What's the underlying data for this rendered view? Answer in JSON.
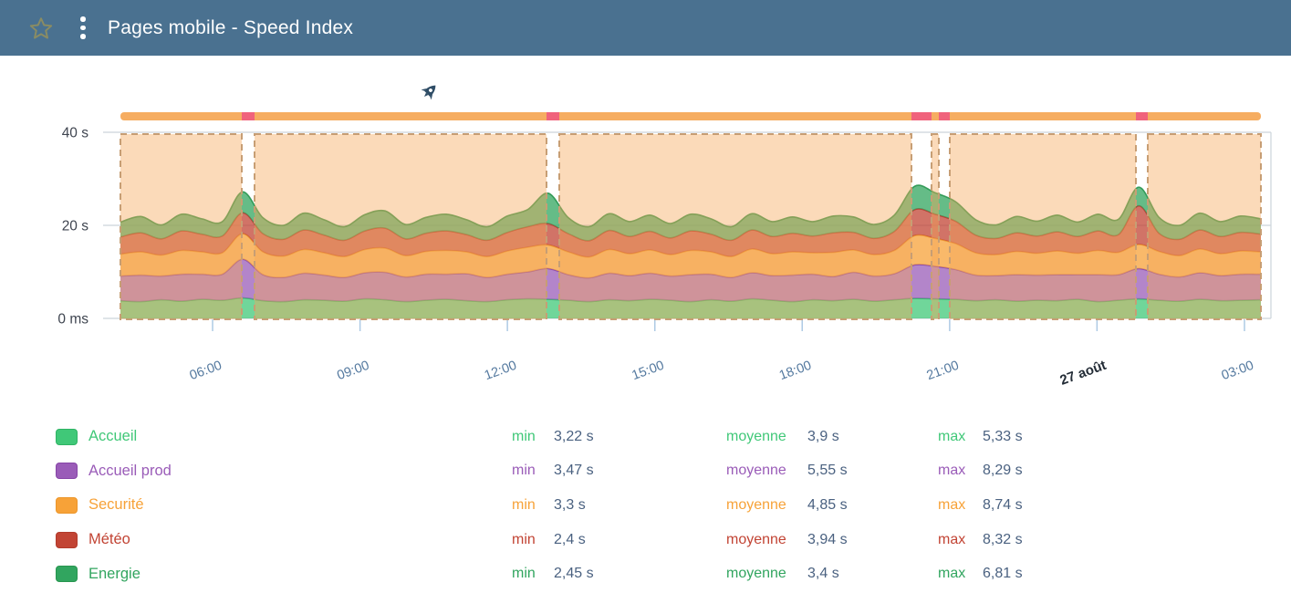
{
  "header": {
    "title": "Pages mobile - Speed Index",
    "favorite_icon": "star-outline",
    "menu_icon": "kebab-vertical"
  },
  "chart_data": {
    "type": "area",
    "stacked": true,
    "unit": "s",
    "title": "Pages mobile - Speed Index",
    "y_axis": {
      "max": 40,
      "ticks": [
        {
          "label": "40 s",
          "value": 40
        },
        {
          "label": "20 s",
          "value": 20
        },
        {
          "label": "0 ms",
          "value": 0
        }
      ]
    },
    "x_ticks": [
      {
        "label": "06:00",
        "pos": 0.0808,
        "emphasis": false
      },
      {
        "label": "09:00",
        "pos": 0.2101,
        "emphasis": false
      },
      {
        "label": "12:00",
        "pos": 0.3393,
        "emphasis": false
      },
      {
        "label": "15:00",
        "pos": 0.4686,
        "emphasis": false
      },
      {
        "label": "18:00",
        "pos": 0.5978,
        "emphasis": false
      },
      {
        "label": "21:00",
        "pos": 0.7271,
        "emphasis": false
      },
      {
        "label": "27 août",
        "pos": 0.8563,
        "emphasis": true
      },
      {
        "label": "03:00",
        "pos": 0.9856,
        "emphasis": false
      }
    ],
    "events_bar": {
      "base_color": "#f6ad61",
      "incident_color": "#f0637c"
    },
    "incidents": [
      {
        "start": 0.1064,
        "end": 0.1176
      },
      {
        "start": 0.3736,
        "end": 0.3848
      },
      {
        "start": 0.6936,
        "end": 0.7112
      },
      {
        "start": 0.7176,
        "end": 0.7272
      },
      {
        "start": 0.8904,
        "end": 0.9008
      }
    ],
    "marker": {
      "icon": "rocket-icon",
      "pos": 0.271
    },
    "overlay": {
      "fill": "rgba(246,167,88,0.42)",
      "dash_color": "#c79e74"
    },
    "grid_color": "#ccd4da",
    "tick_color": "#aecae4",
    "axis_label_color": "#3f4550",
    "x_label_color": "#54799f",
    "x_label_emphasis_color": "#232c36",
    "series": [
      {
        "name": "Accueil",
        "color": "#40c878",
        "dark": "#2fb364",
        "min": 3.22,
        "avg": 3.9,
        "max": 5.33,
        "values": [
          3.8,
          3.6,
          4.0,
          3.7,
          4.1,
          3.9,
          4.4,
          3.8,
          3.6,
          4.0,
          3.9,
          3.7,
          4.2,
          4.0,
          3.6,
          3.9,
          4.1,
          3.8,
          3.6,
          4.0,
          4.2,
          4.1,
          3.9,
          3.6,
          4.0,
          3.8,
          4.1,
          3.9,
          3.6,
          4.0,
          3.7,
          4.2,
          3.9,
          3.6,
          4.0,
          3.8,
          4.1,
          3.7,
          4.0,
          4.3,
          4.2,
          4.1,
          3.8,
          4.0,
          3.7,
          3.9,
          3.8,
          4.1,
          3.6,
          3.9,
          4.2,
          3.9,
          3.7,
          4.1,
          3.8,
          3.9,
          4.0
        ]
      },
      {
        "name": "Accueil prod",
        "color": "#9a5cb8",
        "dark": "#8745a7",
        "min": 3.47,
        "avg": 5.55,
        "max": 8.29,
        "values": [
          5.3,
          5.7,
          5.1,
          5.8,
          5.4,
          5.6,
          8.3,
          5.6,
          5.2,
          5.7,
          5.4,
          5.1,
          5.6,
          5.9,
          5.3,
          5.6,
          5.4,
          5.8,
          5.2,
          5.5,
          5.8,
          6.6,
          5.5,
          5.1,
          5.7,
          5.4,
          5.6,
          5.2,
          5.8,
          5.5,
          5.1,
          5.6,
          5.3,
          5.7,
          5.5,
          5.2,
          5.8,
          5.4,
          5.6,
          7.2,
          7.0,
          6.4,
          5.5,
          5.2,
          5.7,
          5.4,
          5.6,
          5.3,
          5.8,
          5.5,
          6.5,
          5.6,
          5.2,
          5.7,
          5.4,
          5.6,
          5.5
        ]
      },
      {
        "name": "Securité",
        "color": "#f7a238",
        "dark": "#ec962b",
        "min": 3.3,
        "avg": 4.85,
        "max": 8.74,
        "values": [
          4.7,
          5.0,
          4.5,
          5.1,
          4.8,
          4.6,
          5.5,
          4.9,
          4.6,
          5.1,
          4.8,
          4.5,
          5.0,
          5.2,
          4.6,
          4.9,
          5.1,
          4.7,
          4.5,
          5.0,
          5.3,
          5.1,
          4.9,
          4.5,
          5.1,
          4.7,
          5.0,
          4.6,
          5.2,
          4.8,
          4.5,
          5.1,
          4.7,
          5.0,
          4.6,
          5.2,
          4.8,
          4.6,
          5.0,
          6.3,
          6.0,
          5.6,
          4.8,
          4.5,
          5.0,
          4.7,
          5.1,
          4.6,
          5.2,
          4.8,
          5.2,
          4.9,
          4.6,
          5.1,
          4.7,
          5.0,
          4.8
        ]
      },
      {
        "name": "Météo",
        "color": "#c24434",
        "dark": "#b23a2b",
        "min": 2.4,
        "avg": 3.94,
        "max": 8.32,
        "values": [
          3.7,
          4.1,
          3.5,
          4.2,
          3.8,
          3.6,
          4.5,
          3.9,
          3.6,
          4.2,
          3.8,
          3.5,
          4.0,
          4.3,
          3.6,
          3.9,
          4.2,
          3.7,
          3.5,
          4.0,
          4.4,
          4.6,
          3.9,
          3.5,
          4.1,
          3.7,
          4.0,
          3.6,
          4.2,
          3.8,
          3.5,
          4.1,
          3.7,
          4.0,
          3.6,
          4.2,
          3.8,
          3.5,
          4.1,
          5.6,
          5.2,
          4.8,
          3.8,
          3.5,
          4.0,
          3.7,
          4.1,
          3.6,
          4.2,
          3.8,
          8.3,
          3.9,
          3.5,
          4.1,
          3.7,
          4.0,
          3.8
        ]
      },
      {
        "name": "Energie",
        "color": "#31a55f",
        "dark": "#28954f",
        "min": 2.45,
        "avg": 3.4,
        "max": 6.81,
        "values": [
          3.2,
          3.5,
          3.0,
          3.6,
          3.3,
          3.1,
          4.5,
          3.4,
          3.0,
          3.6,
          3.3,
          2.9,
          3.5,
          3.7,
          3.1,
          3.4,
          3.6,
          3.2,
          2.9,
          3.5,
          3.7,
          6.5,
          3.4,
          3.0,
          3.6,
          3.2,
          3.5,
          3.1,
          3.6,
          3.3,
          2.9,
          3.5,
          3.2,
          3.5,
          3.1,
          3.6,
          3.3,
          3.0,
          3.5,
          5.0,
          4.6,
          4.2,
          3.3,
          2.9,
          3.5,
          3.2,
          3.6,
          3.1,
          3.6,
          3.3,
          4.0,
          3.4,
          3.0,
          3.6,
          3.2,
          3.5,
          3.3
        ]
      }
    ]
  },
  "legend": {
    "labels": {
      "min": "min",
      "avg": "moyenne",
      "max": "max"
    },
    "rows": [
      {
        "name": "Accueil",
        "min": "3,22 s",
        "avg": "3,9 s",
        "max": "5,33 s"
      },
      {
        "name": "Accueil prod",
        "min": "3,47 s",
        "avg": "5,55 s",
        "max": "8,29 s"
      },
      {
        "name": "Securité",
        "min": "3,3 s",
        "avg": "4,85 s",
        "max": "8,74 s"
      },
      {
        "name": "Météo",
        "min": "2,4 s",
        "avg": "3,94 s",
        "max": "8,32 s"
      },
      {
        "name": "Energie",
        "min": "2,45 s",
        "avg": "3,4 s",
        "max": "6,81 s"
      }
    ]
  }
}
